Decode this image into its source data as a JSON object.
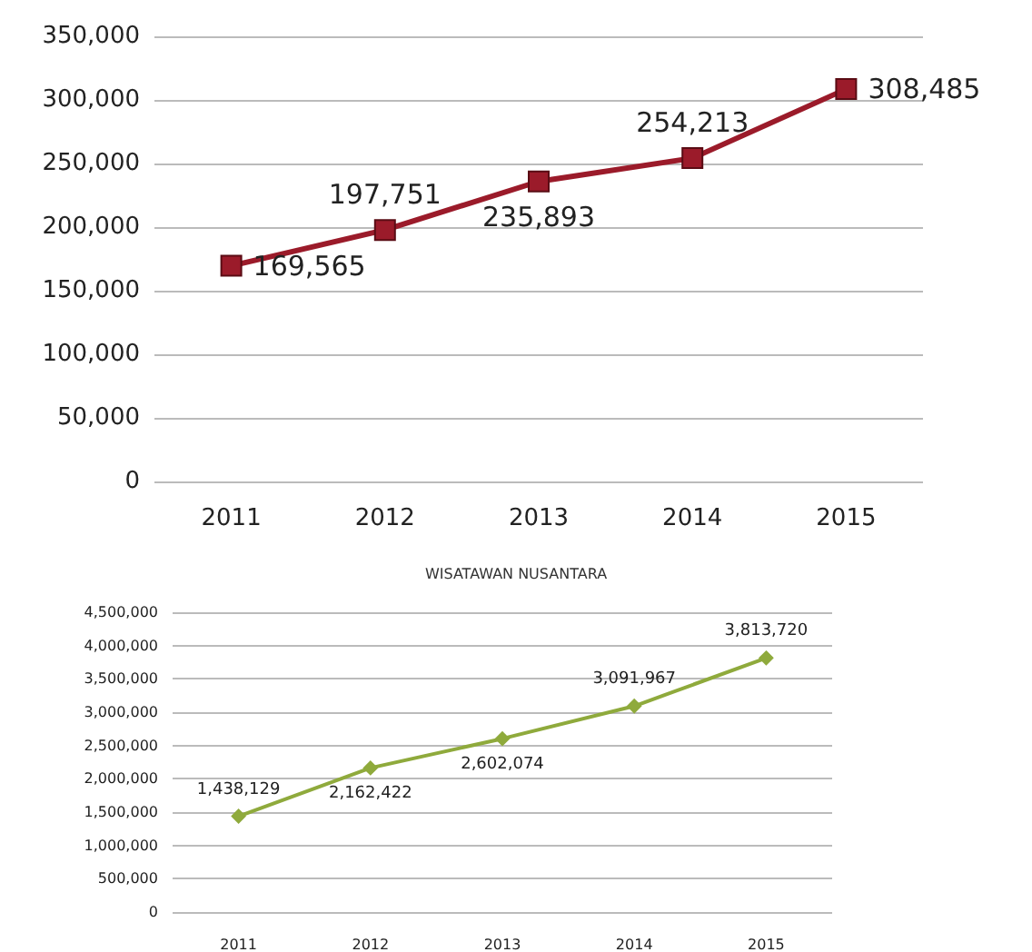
{
  "chart_data": [
    {
      "type": "line",
      "categories": [
        "2011",
        "2012",
        "2013",
        "2014",
        "2015"
      ],
      "series": [
        {
          "color": "#9b1b2a",
          "values": [
            169565,
            197751,
            235893,
            254213,
            308485
          ],
          "value_labels": [
            "169,565",
            "197,751",
            "235,893",
            "254,213",
            "308,485"
          ]
        }
      ],
      "ylim": [
        0,
        350000
      ],
      "yticks": [
        0,
        {
          "value": 50000,
          "label": "50,000"
        },
        {
          "value": 100000,
          "label": "100,000"
        },
        {
          "value": 150000,
          "label": "150,000"
        },
        {
          "value": 200000,
          "label": "200,000"
        },
        {
          "value": 250000,
          "label": "250,000"
        },
        {
          "value": 300000,
          "label": "300,000"
        },
        {
          "value": 350000,
          "label": "350,000"
        }
      ],
      "grid": "y",
      "marker": "square"
    },
    {
      "type": "line",
      "title": "WISATAWAN NUSANTARA",
      "categories": [
        "2011",
        "2012",
        "2013",
        "2014",
        "2015"
      ],
      "series": [
        {
          "color": "#8faa3c",
          "values": [
            1438129,
            2162422,
            2602074,
            3091967,
            3813720
          ],
          "value_labels": [
            "1,438,129",
            "2,162,422",
            "2,602,074",
            "3,091,967",
            "3,813,720"
          ]
        }
      ],
      "ylim": [
        0,
        4500000
      ],
      "yticks": [
        0,
        {
          "value": 500000,
          "label": "500,000"
        },
        {
          "value": 1000000,
          "label": "1,000,000"
        },
        {
          "value": 1500000,
          "label": "1,500,000"
        },
        {
          "value": 2000000,
          "label": "2,000,000"
        },
        {
          "value": 2500000,
          "label": "2,500,000"
        },
        {
          "value": 3000000,
          "label": "3,000,000"
        },
        {
          "value": 3500000,
          "label": "3,500,000"
        },
        {
          "value": 4000000,
          "label": "4,000,000"
        },
        {
          "value": 4500000,
          "label": "4,500,000"
        }
      ],
      "grid": "y",
      "marker": "diamond"
    }
  ]
}
